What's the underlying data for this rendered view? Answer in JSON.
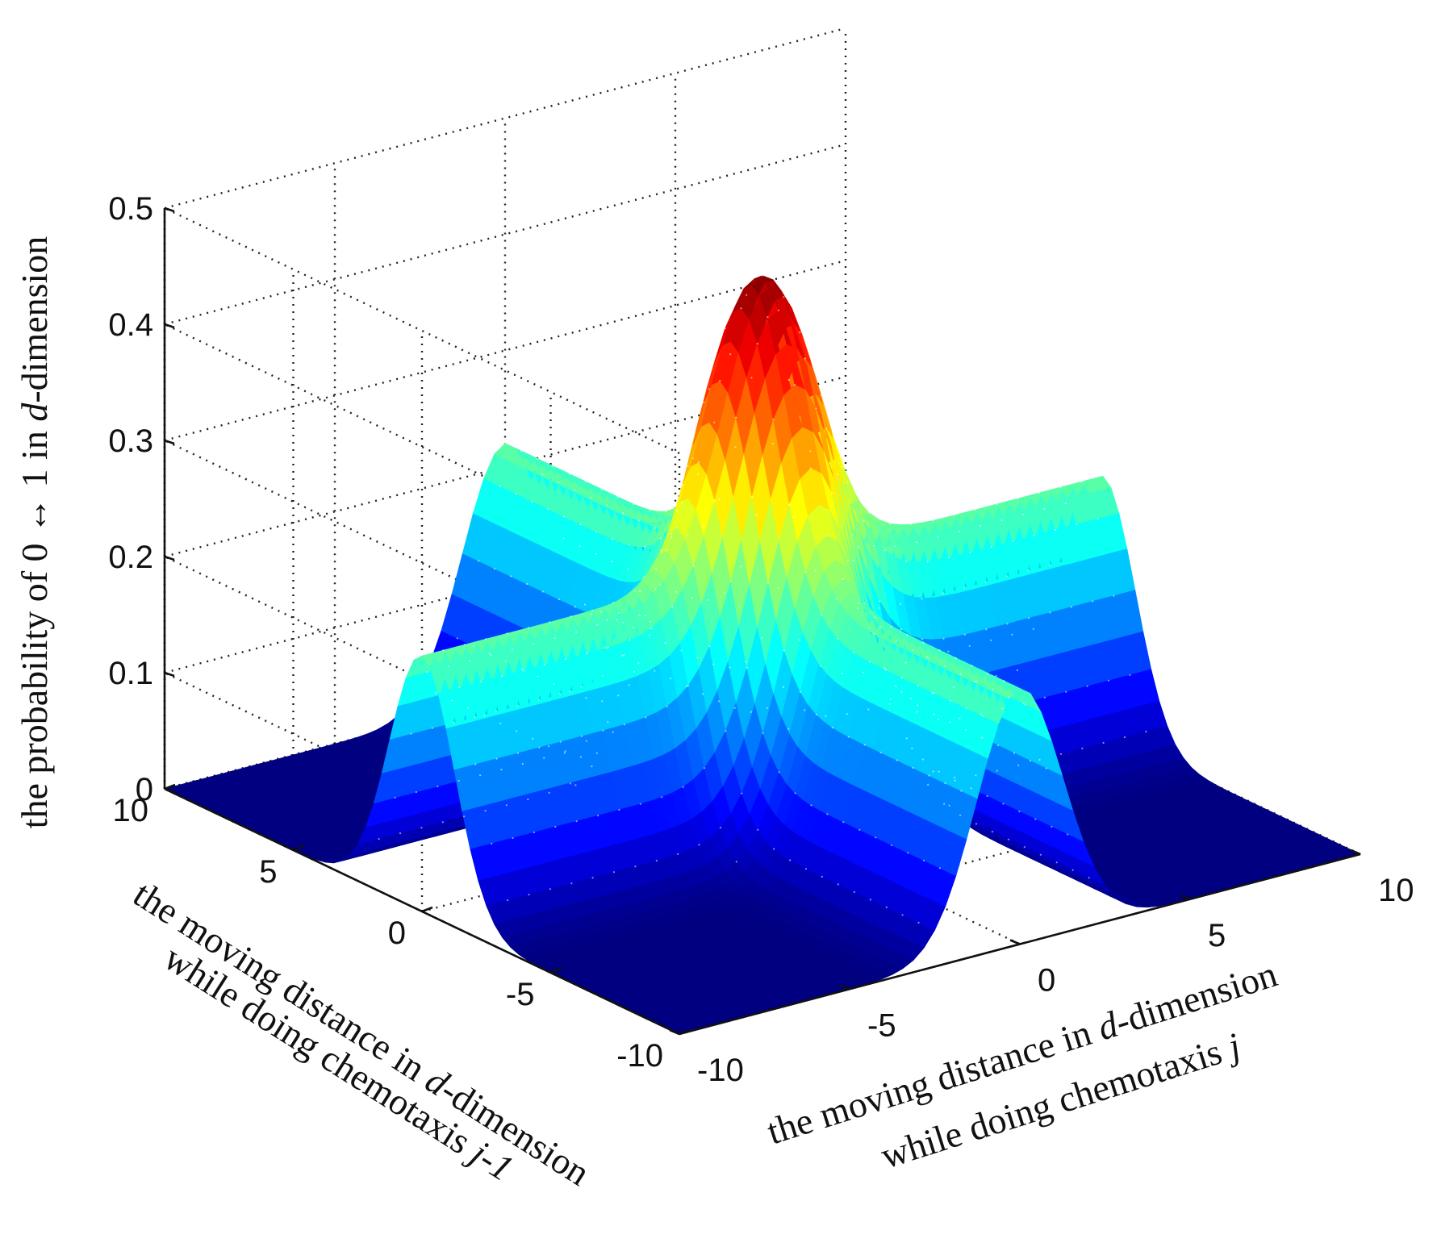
{
  "chart_data": {
    "type": "surface",
    "view": "3d-perspective",
    "colormap": "jet",
    "grid": true,
    "x_axis": {
      "name": "the moving distance in d-dimension while doing chemotaxis j",
      "label_line1_pre": "the moving distance in ",
      "label_var": "d",
      "label_line1_post": "-dimension",
      "label_line2_pre": "while doing chemotaxis ",
      "label_line2_var": "j",
      "range": [
        -10,
        10
      ],
      "ticks": [
        -10,
        -5,
        0,
        5,
        10
      ],
      "tick_labels": [
        "-10",
        "-5",
        "0",
        "5",
        "10"
      ]
    },
    "y_axis": {
      "name": "the moving distance in d-dimension while doing chemotaxis j-1",
      "label_line1_pre": "the moving distance in ",
      "label_var": "d",
      "label_line1_post": "-dimension",
      "label_line2_pre": "while doing chemotaxis ",
      "label_line2_var": "j-1",
      "range": [
        -10,
        10
      ],
      "ticks": [
        -10,
        -5,
        0,
        5,
        10
      ],
      "tick_labels": [
        "-10",
        "-5",
        "0",
        "5",
        "10"
      ]
    },
    "z_axis": {
      "name": "the probability of 0 ↔ 1 in d-dimension",
      "label_pre": "the probability of 0 ↔ 1 in ",
      "label_var": "d",
      "label_post": "-dimension",
      "range": [
        0,
        0.5
      ],
      "ticks": [
        0,
        0.1,
        0.2,
        0.3,
        0.4,
        0.5
      ],
      "tick_labels": [
        "0",
        "0.1",
        "0.2",
        "0.3",
        "0.4",
        "0.5"
      ]
    },
    "surface_description": {
      "peak_value": 0.47,
      "peak_at": [
        0,
        0
      ],
      "ridge_value": 0.22,
      "ridges_along": [
        "x = 0",
        "y = 0"
      ],
      "corner_value": 0.0
    }
  }
}
